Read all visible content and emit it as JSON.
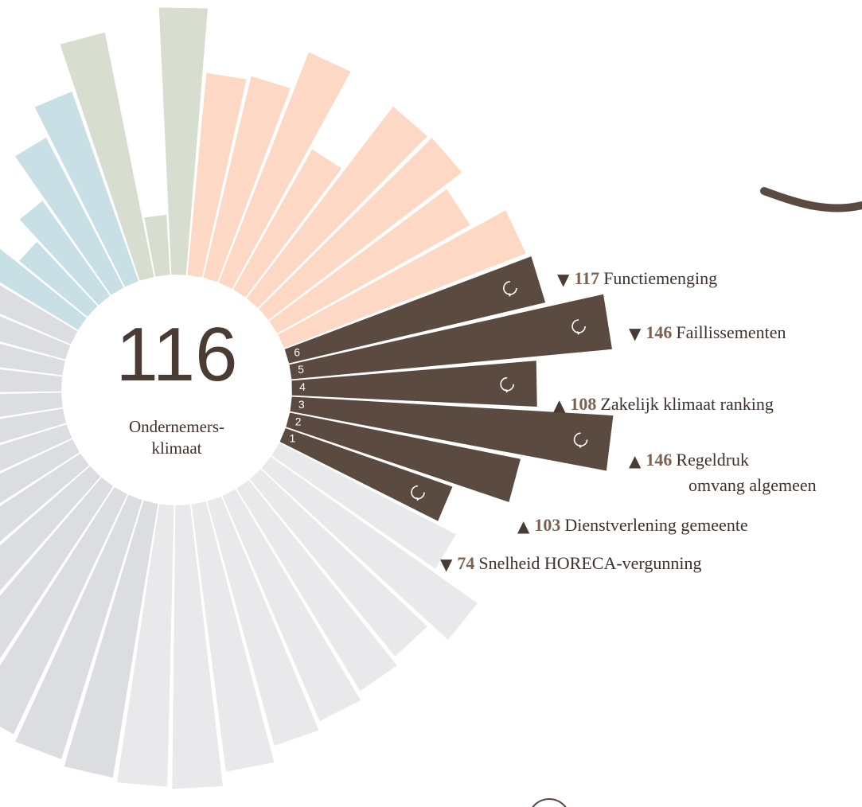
{
  "chart_data": {
    "type": "radial_bar",
    "score": 116,
    "score_label": [
      "Ondernemers-",
      "klimaat"
    ],
    "series": [
      {
        "color": "#5b4a40",
        "values": [
          74,
          103,
          146,
          108,
          146,
          117
        ],
        "ranks": [
          1,
          2,
          3,
          4,
          5,
          6
        ],
        "directions": [
          "▼",
          "▲",
          "▲",
          "▲",
          "▼",
          "▼"
        ],
        "categories": [
          [
            "Snelheid HORECA-vergunning"
          ],
          [
            "Dienstverlening gemeente"
          ],
          [
            "Regeldruk",
            "omvang algemeen"
          ],
          [
            "Zakelijk klimaat ranking"
          ],
          [
            "Faillissementen"
          ],
          [
            "Functiemenging"
          ]
        ]
      },
      {
        "color": "#fdd9c5",
        "values": [
          115,
          96,
          107,
          106,
          66,
          109,
          89,
          87
        ]
      },
      {
        "color": "#d7decf",
        "values": [
          119,
          16,
          110
        ]
      },
      {
        "color": "#c8dfe6",
        "values": [
          86,
          70,
          44,
          30,
          50
        ]
      },
      {
        "color": "#dcdde0",
        "values": [
          40,
          55,
          65,
          75,
          85,
          92,
          98,
          104,
          108,
          112,
          116,
          118,
          121,
          124
        ]
      },
      {
        "color": "#e9e9eb",
        "values": [
          126,
          127,
          120,
          112,
          108,
          104,
          100,
          112,
          85
        ]
      }
    ]
  }
}
